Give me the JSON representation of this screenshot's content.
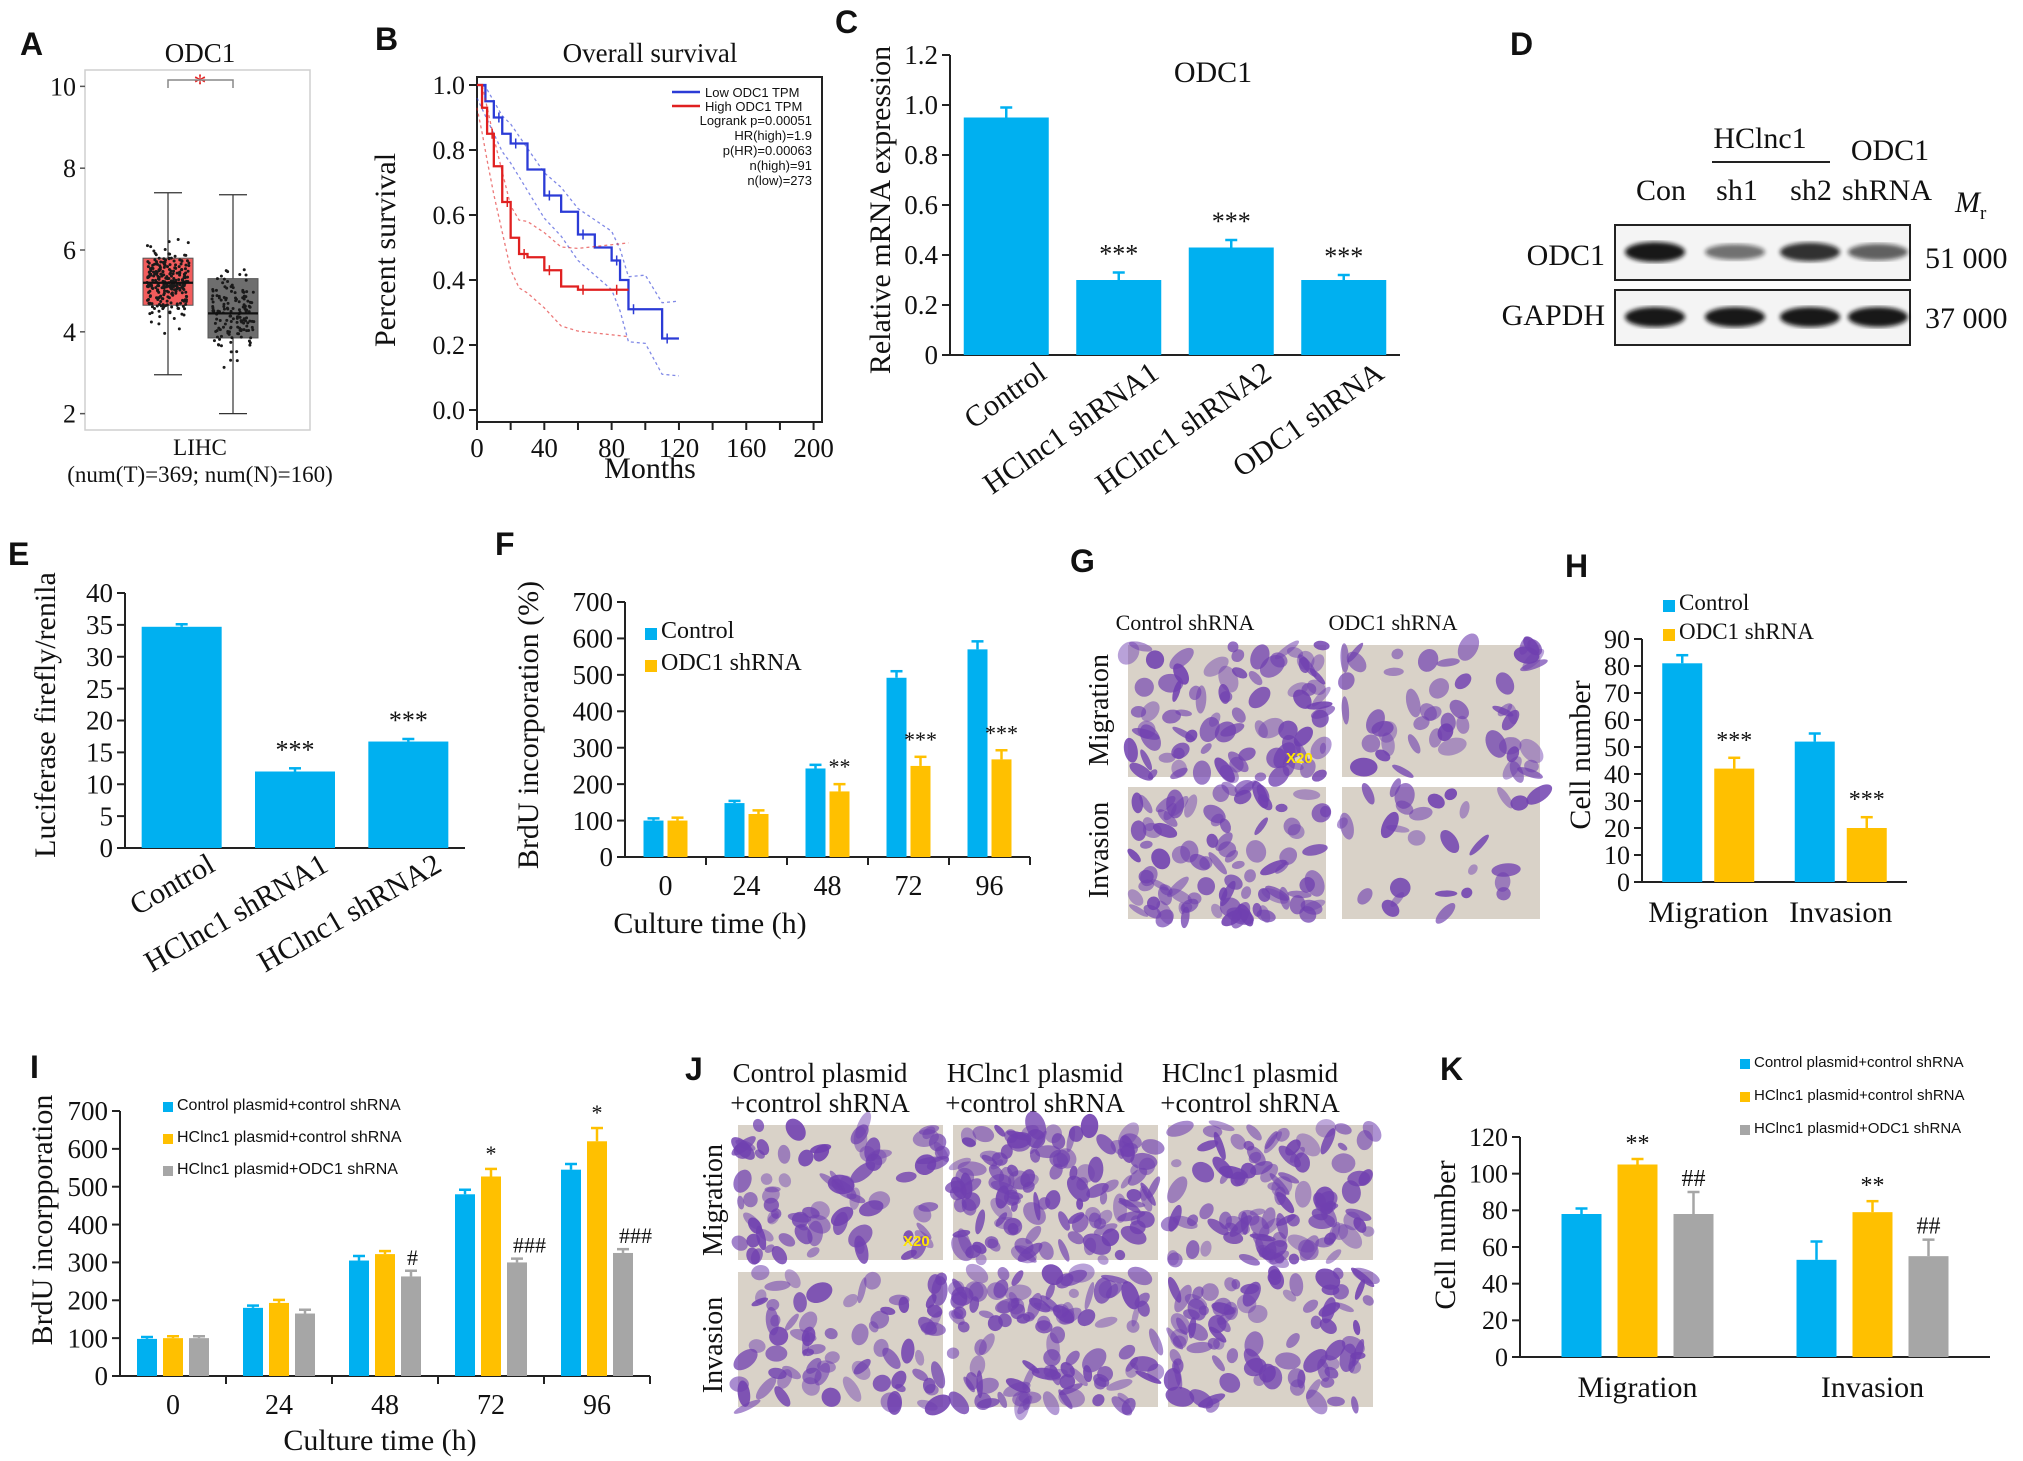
{
  "colors": {
    "blue": "#00b0f0",
    "orange": "#ffc000",
    "gray": "#a6a6a6",
    "tumor": "#f25c5c",
    "normal": "#6e6e6e",
    "km_low": "#2b3bd6",
    "km_high": "#e02020",
    "star_red": "#e02020",
    "stain": "#7040b0",
    "well_bg": "#d9d2c8"
  },
  "panels": {
    "A": {
      "letter": "A"
    },
    "B": {
      "letter": "B"
    },
    "C": {
      "letter": "C"
    },
    "D": {
      "letter": "D"
    },
    "E": {
      "letter": "E"
    },
    "F": {
      "letter": "F"
    },
    "G": {
      "letter": "G"
    },
    "H": {
      "letter": "H"
    },
    "I": {
      "letter": "I"
    },
    "J": {
      "letter": "J"
    },
    "K": {
      "letter": "K"
    }
  },
  "chart_data": [
    {
      "id": "A",
      "type": "box",
      "title": "ODC1",
      "xlabel_line1": "LIHC",
      "xlabel_line2": "(num(T)=369; num(N)=160)",
      "ylim": [
        1.6,
        10.4
      ],
      "yticks": [
        2,
        4,
        6,
        8,
        10
      ],
      "significance": "*",
      "groups": [
        {
          "q1": 4.65,
          "median": 5.2,
          "q3": 5.8,
          "whisker_low": 2.95,
          "whisker_high": 7.4
        },
        {
          "q1": 3.85,
          "median": 4.45,
          "q3": 5.3,
          "whisker_low": 2.0,
          "whisker_high": 7.35
        }
      ]
    },
    {
      "id": "B",
      "type": "line",
      "title": "Overall survival",
      "xlabel": "Months",
      "ylabel": "Percent survival",
      "xlim": [
        0,
        205
      ],
      "ylim": [
        0,
        1.0
      ],
      "xticks": [
        0,
        20,
        40,
        60,
        80,
        100,
        120,
        140,
        160,
        180,
        200
      ],
      "yticks": [
        "0.0",
        "0.2",
        "0.4",
        "0.6",
        "0.8",
        "1.0"
      ],
      "legend": [
        "Low ODC1 TPM",
        "High ODC1 TPM"
      ],
      "stats": [
        "Logrank p=0.00051",
        "HR(high)=1.9",
        "p(HR)=0.00063",
        "n(high)=91",
        "n(low)=273"
      ],
      "series": [
        {
          "name": "Low ODC1 TPM",
          "x": [
            0,
            5,
            10,
            15,
            20,
            30,
            40,
            50,
            60,
            70,
            80,
            85,
            90,
            100,
            110,
            120
          ],
          "y": [
            1.0,
            0.95,
            0.9,
            0.85,
            0.82,
            0.74,
            0.66,
            0.61,
            0.54,
            0.5,
            0.46,
            0.4,
            0.31,
            0.31,
            0.22,
            0.22
          ]
        },
        {
          "name": "High ODC1 TPM",
          "x": [
            0,
            3,
            6,
            10,
            15,
            20,
            25,
            30,
            40,
            50,
            60,
            70,
            80,
            90
          ],
          "y": [
            1.0,
            0.93,
            0.85,
            0.75,
            0.64,
            0.53,
            0.48,
            0.47,
            0.43,
            0.38,
            0.37,
            0.37,
            0.37,
            0.37
          ]
        }
      ]
    },
    {
      "id": "C",
      "type": "bar",
      "title": "ODC1",
      "ylabel": "Relative mRNA expression",
      "ylim": [
        0,
        1.2
      ],
      "yticks": [
        "0",
        "0.2",
        "0.4",
        "0.6",
        "0.8",
        "1.0",
        "1.2"
      ],
      "categories": [
        "Control",
        "HClnc1 shRNA1",
        "HClnc1 shRNA2",
        "ODC1 shRNA"
      ],
      "values": [
        0.95,
        0.3,
        0.43,
        0.3
      ],
      "errors": [
        0.04,
        0.03,
        0.03,
        0.02
      ],
      "sig": [
        "",
        "***",
        "***",
        "***"
      ]
    },
    {
      "id": "D",
      "type": "blot",
      "col_labels": [
        "Con",
        "sh1",
        "sh2",
        "shRNA"
      ],
      "group_label": "HClnc1",
      "group_label2": "ODC1",
      "row_labels": [
        "ODC1",
        "GAPDH"
      ],
      "mr_symbol": "M",
      "mr_sub": "r",
      "mr_values": [
        "51 000",
        "37 000"
      ],
      "band_intensity": [
        [
          1.0,
          0.45,
          0.85,
          0.55
        ],
        [
          1.0,
          1.0,
          1.0,
          1.0
        ]
      ]
    },
    {
      "id": "E",
      "type": "bar",
      "ylabel": "Luciferase firefly/renila",
      "ylim": [
        0,
        40
      ],
      "yticks": [
        "0",
        "5",
        "10",
        "15",
        "20",
        "25",
        "30",
        "35",
        "40"
      ],
      "categories": [
        "Control",
        "HClnc1 shRNA1",
        "HClnc1 shRNA2"
      ],
      "values": [
        34.7,
        12.0,
        16.7
      ],
      "errors": [
        0.4,
        0.5,
        0.4
      ],
      "sig": [
        "",
        "***",
        "***"
      ]
    },
    {
      "id": "F",
      "type": "bar",
      "xlabel": "Culture time (h)",
      "ylabel": "BrdU incorporation (%)",
      "ylim": [
        0,
        700
      ],
      "yticks": [
        "0",
        "100",
        "200",
        "300",
        "400",
        "500",
        "600",
        "700"
      ],
      "categories": [
        "0",
        "24",
        "48",
        "72",
        "96"
      ],
      "series": [
        {
          "name": "Control",
          "values": [
            100,
            148,
            243,
            492,
            570
          ],
          "errors": [
            6,
            6,
            10,
            18,
            22
          ]
        },
        {
          "name": "ODC1 shRNA",
          "values": [
            100,
            118,
            180,
            250,
            268
          ],
          "errors": [
            8,
            10,
            20,
            25,
            25
          ]
        }
      ],
      "sig": [
        "",
        "",
        "**",
        "***",
        "***"
      ]
    },
    {
      "id": "G",
      "type": "image_grid",
      "col_labels": [
        "Control shRNA",
        "ODC1 shRNA"
      ],
      "row_labels": [
        "Migration",
        "Invasion"
      ],
      "scale_label": "X20"
    },
    {
      "id": "H",
      "type": "bar",
      "ylabel": "Cell number",
      "ylim": [
        0,
        90
      ],
      "yticks": [
        "0",
        "10",
        "20",
        "30",
        "40",
        "50",
        "60",
        "70",
        "80",
        "90"
      ],
      "categories": [
        "Migration",
        "Invasion"
      ],
      "series": [
        {
          "name": "Control",
          "values": [
            81,
            52
          ],
          "errors": [
            3,
            3
          ]
        },
        {
          "name": "ODC1 shRNA",
          "values": [
            42,
            20
          ],
          "errors": [
            4,
            4
          ]
        }
      ],
      "sig": [
        "***",
        "***"
      ]
    },
    {
      "id": "I",
      "type": "bar",
      "xlabel": "Culture time (h)",
      "ylabel": "BrdU incorpporation",
      "ylim": [
        0,
        700
      ],
      "yticks": [
        "0",
        "100",
        "200",
        "300",
        "400",
        "500",
        "600",
        "700"
      ],
      "categories": [
        "0",
        "24",
        "48",
        "72",
        "96"
      ],
      "series": [
        {
          "name": "Control plasmid+control shRNA",
          "values": [
            98,
            180,
            305,
            480,
            545
          ],
          "errors": [
            5,
            6,
            12,
            12,
            15
          ]
        },
        {
          "name": "HClnc1 plasmid+control shRNA",
          "values": [
            100,
            193,
            322,
            527,
            620
          ],
          "errors": [
            5,
            8,
            8,
            20,
            35
          ]
        },
        {
          "name": "HClnc1 plasmid+ODC1 shRNA",
          "values": [
            100,
            165,
            263,
            300,
            325
          ],
          "errors": [
            5,
            10,
            15,
            10,
            10
          ]
        }
      ],
      "sig_star": [
        "",
        "",
        "",
        "*",
        "*"
      ],
      "sig_hash": [
        "",
        "",
        "#",
        "###",
        "###"
      ]
    },
    {
      "id": "J",
      "type": "image_grid",
      "col_labels_line1": [
        "Control plasmid",
        "HClnc1 plasmid",
        "HClnc1 plasmid"
      ],
      "col_labels_line2": [
        "+control shRNA",
        "+control shRNA",
        "+control shRNA"
      ],
      "row_labels": [
        "Migration",
        "Invasion"
      ],
      "scale_label": "X20"
    },
    {
      "id": "K",
      "type": "bar",
      "ylabel": "Cell number",
      "ylim": [
        0,
        120
      ],
      "yticks": [
        "0",
        "20",
        "40",
        "60",
        "80",
        "100",
        "120"
      ],
      "categories": [
        "Migration",
        "Invasion"
      ],
      "series": [
        {
          "name": "Control plasmid+control shRNA",
          "values": [
            78,
            53
          ],
          "errors": [
            3,
            10
          ]
        },
        {
          "name": "HClnc1 plasmid+control shRNA",
          "values": [
            105,
            79
          ],
          "errors": [
            3,
            6
          ]
        },
        {
          "name": "HClnc1 plasmid+ODC1 shRNA",
          "values": [
            78,
            55
          ],
          "errors": [
            12,
            9
          ]
        }
      ],
      "sig_star": [
        "**",
        "**"
      ],
      "sig_hash": [
        "##",
        "##"
      ]
    }
  ]
}
